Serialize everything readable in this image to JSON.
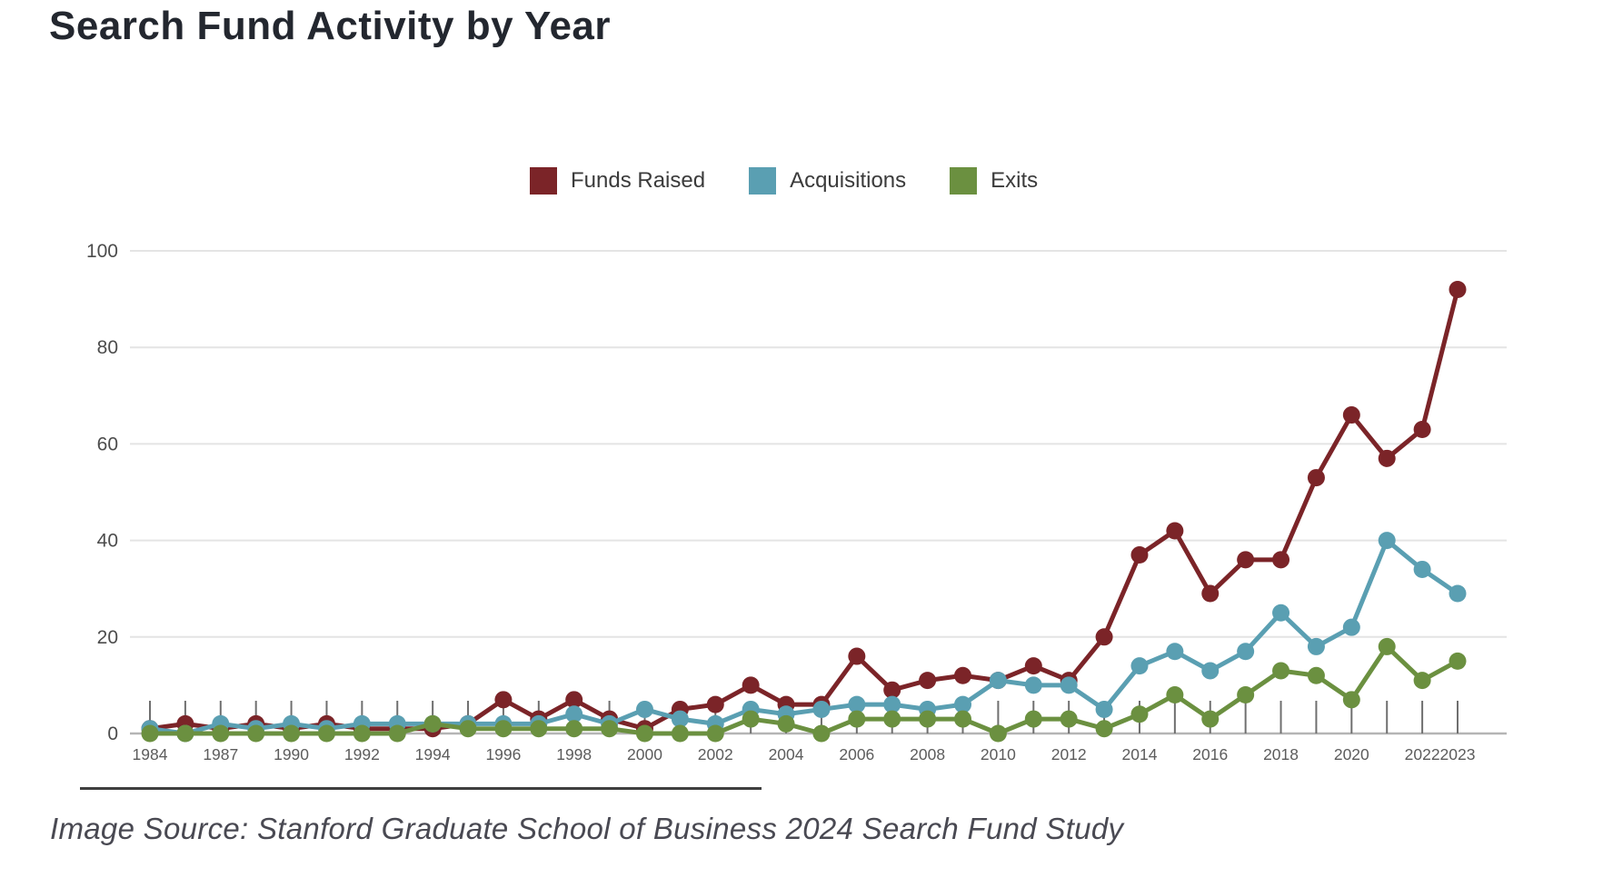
{
  "title": "Search Fund Activity by Year",
  "caption": "Image Source: Stanford Graduate School of Business 2024 Search Fund Study",
  "colors": {
    "funds_raised": "#7b2428",
    "acquisitions": "#5a9fb2",
    "exits": "#6b9040",
    "grid": "#e4e4e4",
    "axis": "#b5b5b5",
    "point_tick": "#6f6f6f",
    "y_label": "#4c4c4c",
    "x_label": "#5c5c5c",
    "title_text": "#23272f",
    "caption_text": "#494952"
  },
  "chart_data": {
    "type": "line",
    "title": "Search Fund Activity by Year",
    "xlabel": "",
    "ylabel": "",
    "ylim": [
      0,
      100
    ],
    "yticks": [
      0,
      20,
      40,
      60,
      80,
      100
    ],
    "grid": true,
    "legend_position": "top",
    "marker": "circle",
    "x": [
      1984,
      1986,
      1987,
      1989,
      1990,
      1991,
      1992,
      1993,
      1994,
      1995,
      1996,
      1997,
      1998,
      1999,
      2000,
      2001,
      2002,
      2003,
      2004,
      2005,
      2006,
      2007,
      2008,
      2009,
      2010,
      2011,
      2012,
      2013,
      2014,
      2015,
      2016,
      2017,
      2018,
      2019,
      2020,
      2021,
      2022,
      2023
    ],
    "x_tick_labels": [
      "1984",
      "1987",
      "1990",
      "1992",
      "1994",
      "1996",
      "1998",
      "2000",
      "2002",
      "2004",
      "2006",
      "2008",
      "2010",
      "2012",
      "2014",
      "2016",
      "2018",
      "2020",
      "2022",
      "2023"
    ],
    "series": [
      {
        "name": "Funds Raised",
        "color": "#7b2428",
        "values": [
          1,
          2,
          1,
          2,
          1,
          2,
          1,
          1,
          1,
          2,
          7,
          3,
          7,
          3,
          1,
          5,
          6,
          10,
          6,
          6,
          16,
          9,
          11,
          12,
          11,
          14,
          11,
          20,
          37,
          42,
          29,
          36,
          36,
          53,
          66,
          57,
          63,
          92
        ]
      },
      {
        "name": "Acquisitions",
        "color": "#5a9fb2",
        "values": [
          1,
          0,
          2,
          1,
          2,
          1,
          2,
          2,
          2,
          2,
          2,
          2,
          4,
          2,
          5,
          3,
          2,
          5,
          4,
          5,
          6,
          6,
          5,
          6,
          11,
          10,
          10,
          5,
          14,
          17,
          13,
          17,
          25,
          18,
          22,
          40,
          34,
          29
        ]
      },
      {
        "name": "Exits",
        "color": "#6b9040",
        "values": [
          0,
          0,
          0,
          0,
          0,
          0,
          0,
          0,
          2,
          1,
          1,
          1,
          1,
          1,
          0,
          0,
          0,
          3,
          2,
          0,
          3,
          3,
          3,
          3,
          0,
          3,
          3,
          1,
          4,
          8,
          3,
          8,
          13,
          12,
          7,
          18,
          11,
          15
        ]
      }
    ]
  }
}
